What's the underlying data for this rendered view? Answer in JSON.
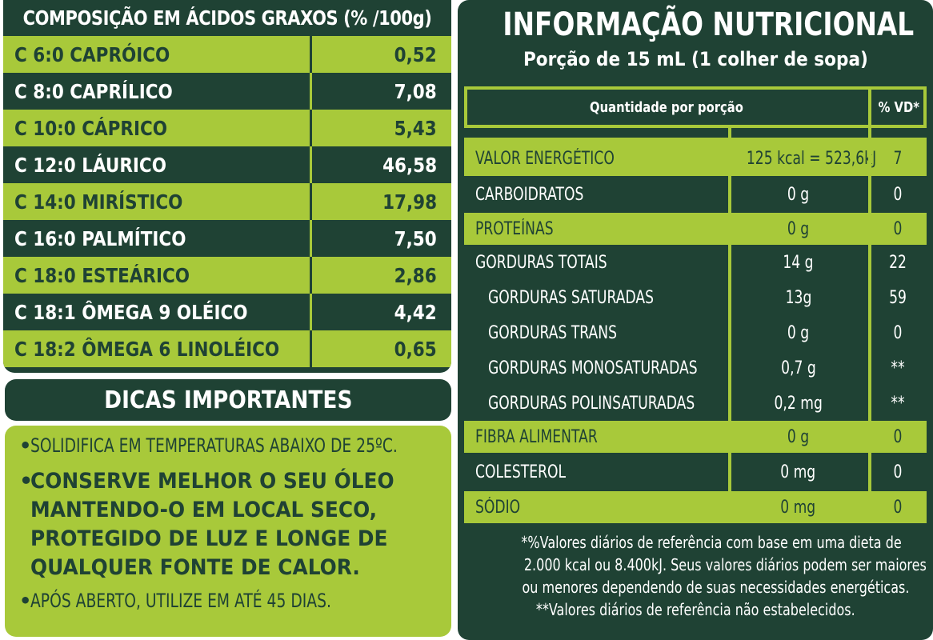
{
  "fatty_acids": {
    "title": "COMPOSIÇÃO EM ÁCIDOS GRAXOS (% /100g)",
    "rows": [
      {
        "name": "C 6:0 CAPRÓICO",
        "value": "0,52"
      },
      {
        "name": "C 8:0 CAPRÍLICO",
        "value": "7,08"
      },
      {
        "name": "C 10:0 CÁPRICO",
        "value": "5,43"
      },
      {
        "name": "C 12:0 LÁURICO",
        "value": "46,58"
      },
      {
        "name": "C 14:0 MIRÍSTICO",
        "value": "17,98"
      },
      {
        "name": "C 16:0 PALMÍTICO",
        "value": "7,50"
      },
      {
        "name": "C 18:0 ESTEÁRICO",
        "value": "2,86"
      },
      {
        "name": "C 18:1 ÔMEGA 9 OLÉICO",
        "value": "4,42"
      },
      {
        "name": "C 18:2 ÔMEGA 6 LINOLÉICO",
        "value": "0,65"
      }
    ]
  },
  "tips": {
    "title": "DICAS IMPORTANTES",
    "bullet": "•",
    "items": [
      "SOLIDIFICA EM TEMPERATURAS ABAIXO DE 25ºC.",
      "CONSERVE MELHOR O SEU ÓLEO\nMANTENDO-O EM LOCAL SECO,\nPROTEGIDO DE LUZ E LONGE DE\nQUALQUER FONTE DE CALOR.",
      "APÓS ABERTO, UTILIZE EM ATÉ 45 DIAS."
    ]
  },
  "nutrition": {
    "title": "INFORMAÇÃO NUTRICIONAL",
    "portion": "Porção de 15 mL (1 colher de sopa)",
    "col_quantity": "Quantidade por porção",
    "col_vd": "% VD*",
    "rows": [
      {
        "name": "VALOR ENERGÉTICO",
        "qty": "125 kcal = 523,6kJ",
        "vd": "7"
      },
      {
        "name": "CARBOIDRATOS",
        "qty": "0 g",
        "vd": "0"
      },
      {
        "name": "PROTEÍNAS",
        "qty": "0 g",
        "vd": "0"
      },
      {
        "name": "GORDURAS TOTAIS",
        "qty": "14 g",
        "vd": "22"
      },
      {
        "name": "GORDURAS SATURADAS",
        "qty": "13g",
        "vd": "59"
      },
      {
        "name": "GORDURAS TRANS",
        "qty": "0 g",
        "vd": "0"
      },
      {
        "name": "GORDURAS MONOSATURADAS",
        "qty": "0,7 g",
        "vd": "**"
      },
      {
        "name": "GORDURAS POLINSATURADAS",
        "qty": "0,2 mg",
        "vd": "**"
      },
      {
        "name": "FIBRA ALIMENTAR",
        "qty": "0 g",
        "vd": "0"
      },
      {
        "name": "COLESTEROL",
        "qty": "0 mg",
        "vd": "0"
      },
      {
        "name": "SÓDIO",
        "qty": "0 mg",
        "vd": "0"
      }
    ],
    "footnote": [
      "*%Valores diários de referência com base em uma dieta de",
      "2.000 kcal ou 8.400kJ. Seus valores diários podem ser maiores",
      "ou menores dependendo de suas necessidades energéticas.",
      "**Valores diários de referência não estabelecidos."
    ]
  },
  "colors": {
    "dark_green": "#1f4234",
    "lime_green": "#a8c93a",
    "white": "#ffffff"
  }
}
